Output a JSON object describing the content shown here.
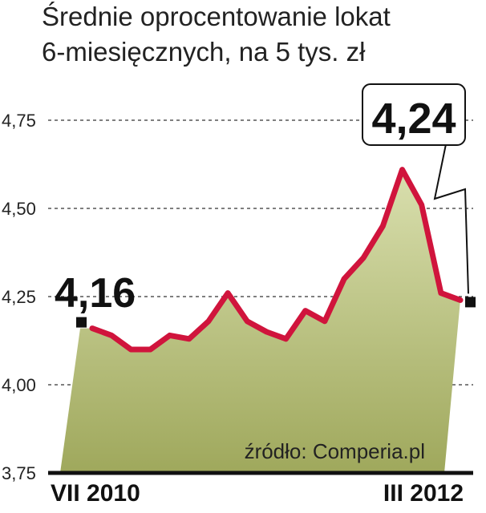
{
  "chart_data": {
    "type": "area",
    "title": "Średnie oprocentowanie lokat",
    "subtitle": "6-miesięcznych, na 5 tys. zł",
    "x_labels": [
      "VII 2010",
      "III 2012"
    ],
    "y_ticks": [
      "3,75",
      "4,00",
      "4,25",
      "4,50",
      "4,75"
    ],
    "ylim": [
      3.75,
      4.85
    ],
    "grid": true,
    "series": [
      {
        "values": [
          4.16,
          4.14,
          4.1,
          4.1,
          4.14,
          4.13,
          4.18,
          4.26,
          4.18,
          4.15,
          4.13,
          4.21,
          4.18,
          4.3,
          4.36,
          4.45,
          4.61,
          4.51,
          4.26,
          4.24
        ]
      }
    ],
    "callouts": {
      "start_value": "4,16",
      "end_value": "4,24"
    },
    "source": "źródło: Comperia.pl",
    "colors": {
      "line": "#d0143c",
      "fill_top": "#d9dfae",
      "fill_bottom": "#9fa85c",
      "axis": "#111111",
      "grid": "#333333"
    }
  }
}
